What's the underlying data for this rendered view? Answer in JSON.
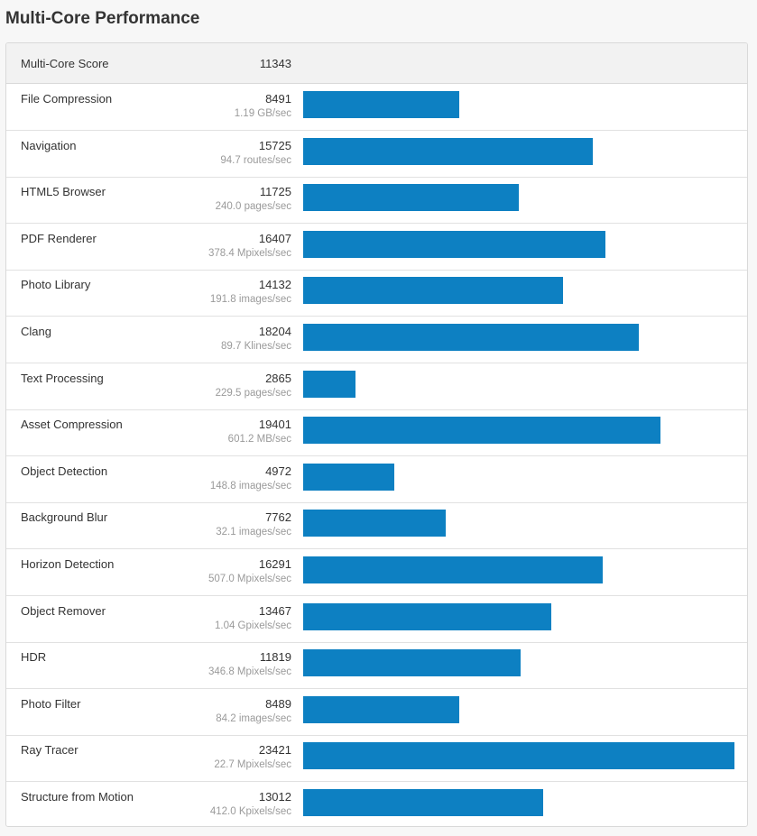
{
  "page": {
    "title": "Multi-Core Performance"
  },
  "colors": {
    "bar": "#0d80c2",
    "rate_text": "#9a9a9a",
    "header_bg": "#f2f2f2"
  },
  "chart_data": {
    "type": "bar",
    "orientation": "horizontal",
    "title": "Multi-Core Performance",
    "summary": {
      "label": "Multi-Core Score",
      "score": "11343"
    },
    "xlim": [
      0,
      23421
    ],
    "categories": [
      "File Compression",
      "Navigation",
      "HTML5 Browser",
      "PDF Renderer",
      "Photo Library",
      "Clang",
      "Text Processing",
      "Asset Compression",
      "Object Detection",
      "Background Blur",
      "Horizon Detection",
      "Object Remover",
      "HDR",
      "Photo Filter",
      "Ray Tracer",
      "Structure from Motion"
    ],
    "values": [
      8491,
      15725,
      11725,
      16407,
      14132,
      18204,
      2865,
      19401,
      4972,
      7762,
      16291,
      13467,
      11819,
      8489,
      23421,
      13012
    ],
    "rows": [
      {
        "name": "File Compression",
        "score": "8491",
        "rate": "1.19 GB/sec",
        "value": 8491
      },
      {
        "name": "Navigation",
        "score": "15725",
        "rate": "94.7 routes/sec",
        "value": 15725
      },
      {
        "name": "HTML5 Browser",
        "score": "11725",
        "rate": "240.0 pages/sec",
        "value": 11725
      },
      {
        "name": "PDF Renderer",
        "score": "16407",
        "rate": "378.4 Mpixels/sec",
        "value": 16407
      },
      {
        "name": "Photo Library",
        "score": "14132",
        "rate": "191.8 images/sec",
        "value": 14132
      },
      {
        "name": "Clang",
        "score": "18204",
        "rate": "89.7 Klines/sec",
        "value": 18204
      },
      {
        "name": "Text Processing",
        "score": "2865",
        "rate": "229.5 pages/sec",
        "value": 2865
      },
      {
        "name": "Asset Compression",
        "score": "19401",
        "rate": "601.2 MB/sec",
        "value": 19401
      },
      {
        "name": "Object Detection",
        "score": "4972",
        "rate": "148.8 images/sec",
        "value": 4972
      },
      {
        "name": "Background Blur",
        "score": "7762",
        "rate": "32.1 images/sec",
        "value": 7762
      },
      {
        "name": "Horizon Detection",
        "score": "16291",
        "rate": "507.0 Mpixels/sec",
        "value": 16291
      },
      {
        "name": "Object Remover",
        "score": "13467",
        "rate": "1.04 Gpixels/sec",
        "value": 13467
      },
      {
        "name": "HDR",
        "score": "11819",
        "rate": "346.8 Mpixels/sec",
        "value": 11819
      },
      {
        "name": "Photo Filter",
        "score": "8489",
        "rate": "84.2 images/sec",
        "value": 8489
      },
      {
        "name": "Ray Tracer",
        "score": "23421",
        "rate": "22.7 Mpixels/sec",
        "value": 23421
      },
      {
        "name": "Structure from Motion",
        "score": "13012",
        "rate": "412.0 Kpixels/sec",
        "value": 13012
      }
    ]
  }
}
